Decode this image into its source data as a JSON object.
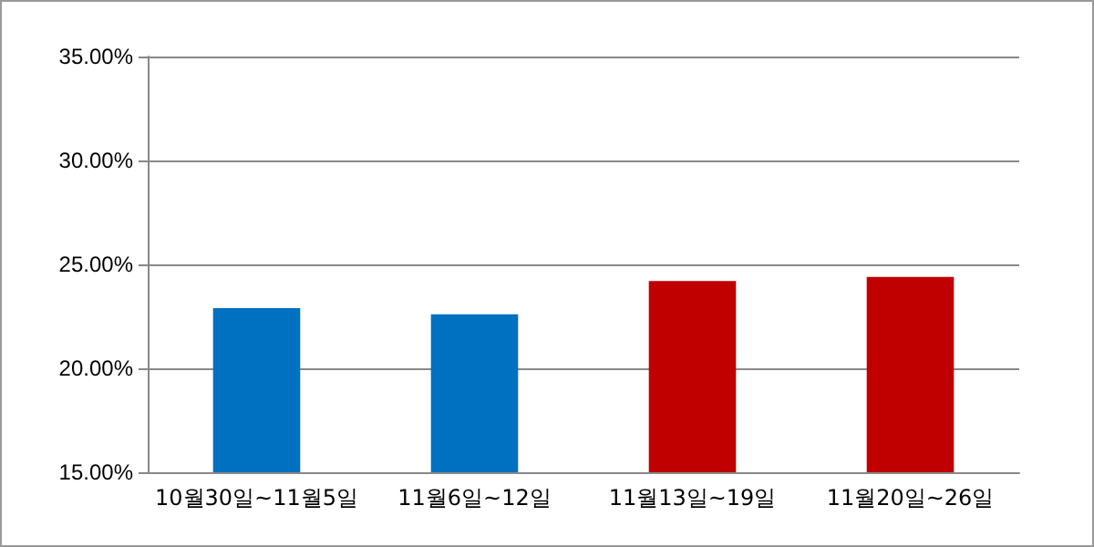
{
  "chart_data": {
    "type": "bar",
    "categories": [
      "10월30일~11월5일",
      "11월6일~12일",
      "11월13일~19일",
      "11월20일~26일"
    ],
    "values": [
      22.9,
      22.6,
      24.2,
      24.4
    ],
    "colors": [
      "#0070c0",
      "#0070c0",
      "#c00000",
      "#c00000"
    ],
    "ylim": [
      15,
      35
    ],
    "yticks": [
      {
        "value": 15,
        "label": "15.00%"
      },
      {
        "value": 20,
        "label": "20.00%"
      },
      {
        "value": 25,
        "label": "25.00%"
      },
      {
        "value": 30,
        "label": "30.00%"
      },
      {
        "value": 35,
        "label": "35.00%"
      }
    ],
    "grid": "y"
  }
}
